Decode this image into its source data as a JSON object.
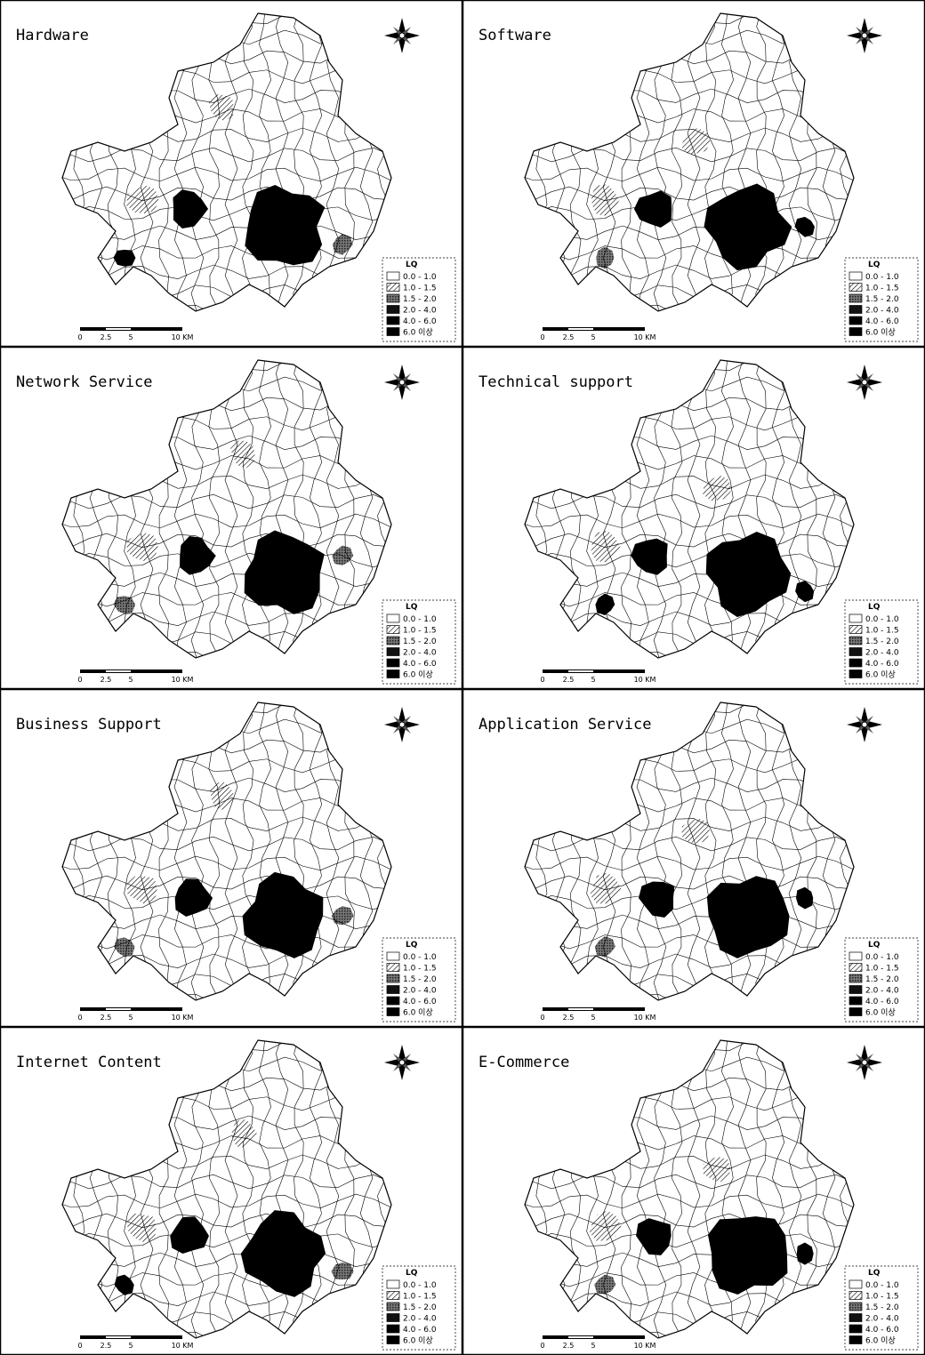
{
  "panels": [
    {
      "title": "Hardware",
      "legend_title": "LQ",
      "legend_items": [
        "0.0 - 1.0",
        "1.0 - 1.5",
        "1.5 - 2.0",
        "2.0 - 4.0",
        "4.0 - 6.0",
        "6.0 이상"
      ],
      "scale_labels": [
        "0",
        "2.5",
        "5",
        "10 KM"
      ]
    },
    {
      "title": "Software",
      "legend_title": "LQ",
      "legend_items": [
        "0.0 - 1.0",
        "1.0 - 1.5",
        "1.5 - 2.0",
        "2.0 - 4.0",
        "4.0 - 6.0",
        "6.0 이상"
      ],
      "scale_labels": [
        "0",
        "2.5",
        "5",
        "10 KM"
      ]
    },
    {
      "title": "Network Service",
      "legend_title": "LQ",
      "legend_items": [
        "0.0 - 1.0",
        "1.0 - 1.5",
        "1.5 - 2.0",
        "2.0 - 4.0",
        "4.0 - 6.0",
        "6.0 이상"
      ],
      "scale_labels": [
        "0",
        "2.5",
        "5",
        "10 KM"
      ]
    },
    {
      "title": "Technical support",
      "legend_title": "LQ",
      "legend_items": [
        "0.0 - 1.0",
        "1.0 - 1.5",
        "1.5 - 2.0",
        "2.0 - 4.0",
        "4.0 - 6.0",
        "6.0 이상"
      ],
      "scale_labels": [
        "0",
        "2.5",
        "5",
        "10 KM"
      ]
    },
    {
      "title": "Business Support",
      "legend_title": "LQ",
      "legend_items": [
        "0.0 - 1.0",
        "1.0 - 1.5",
        "1.5 - 2.0",
        "2.0 - 4.0",
        "4.0 - 6.0",
        "6.0 이상"
      ],
      "scale_labels": [
        "0",
        "2.5",
        "5",
        "10 KM"
      ]
    },
    {
      "title": "Application Service",
      "legend_title": "LQ",
      "legend_items": [
        "0.0 - 1.0",
        "1.0 - 1.5",
        "1.5 - 2.0",
        "2.0 - 4.0",
        "4.0 - 6.0",
        "6.0 이상"
      ],
      "scale_labels": [
        "0",
        "2.5",
        "5",
        "10 KM"
      ]
    },
    {
      "title": "Internet Content",
      "legend_title": "LQ",
      "legend_items": [
        "0.0 - 1.0",
        "1.0 - 1.5",
        "1.5 - 2.0",
        "2.0 - 4.0",
        "4.0 - 6.0",
        "6.0 이상"
      ],
      "scale_labels": [
        "0",
        "2.5",
        "5",
        "10 KM"
      ]
    },
    {
      "title": "E-Commerce",
      "legend_title": "LQ",
      "legend_items": [
        "0.0 - 1.0",
        "1.0 - 1.5",
        "1.5 - 2.0",
        "2.0 - 4.0",
        "4.0 - 6.0",
        "6.0 이상"
      ],
      "scale_labels": [
        "0",
        "2.5",
        "5",
        "10 KM"
      ]
    }
  ]
}
